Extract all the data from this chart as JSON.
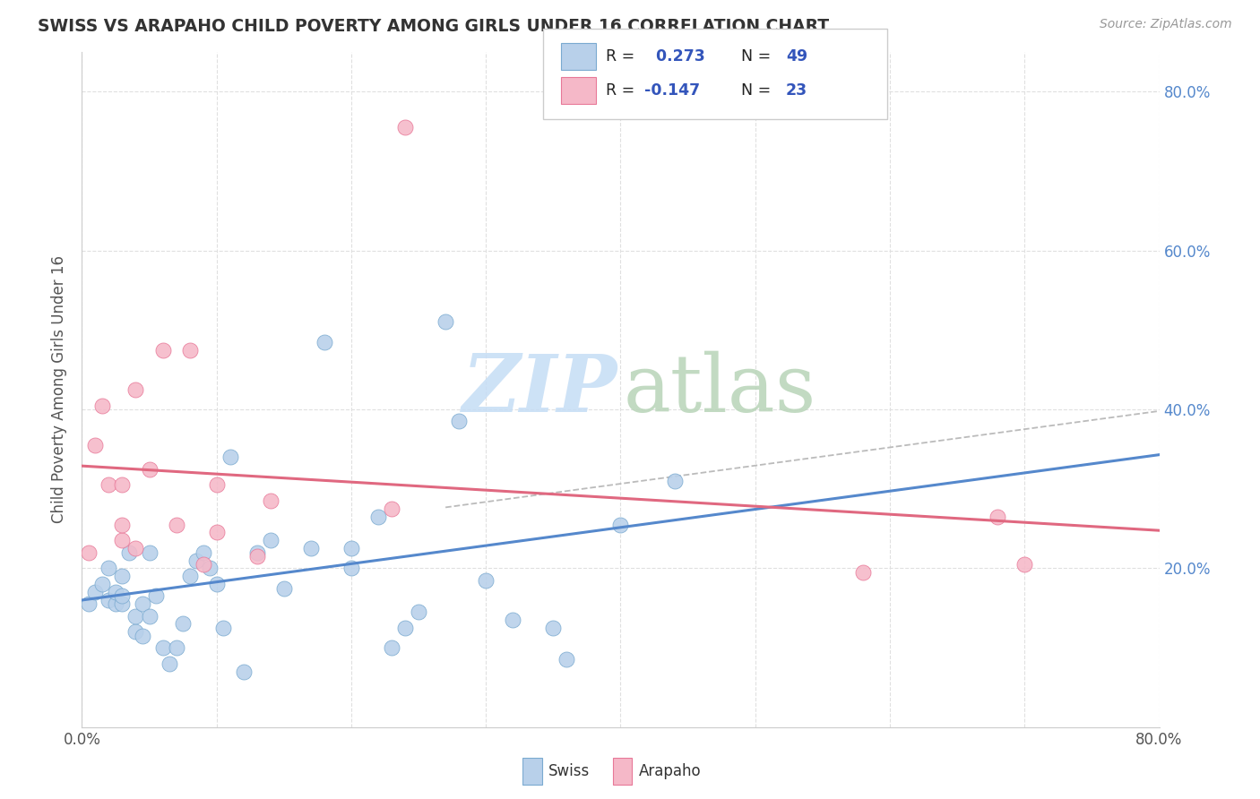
{
  "title": "SWISS VS ARAPAHO CHILD POVERTY AMONG GIRLS UNDER 16 CORRELATION CHART",
  "source": "Source: ZipAtlas.com",
  "ylabel": "Child Poverty Among Girls Under 16",
  "xlim": [
    0.0,
    0.8
  ],
  "ylim": [
    0.0,
    0.85
  ],
  "swiss_R": "0.273",
  "swiss_N": "49",
  "arapaho_R": "-0.147",
  "arapaho_N": "23",
  "swiss_fill": "#b8d0ea",
  "arapaho_fill": "#f5b8c8",
  "swiss_edge": "#7aaad0",
  "arapaho_edge": "#e87898",
  "swiss_line": "#5588cc",
  "arapaho_line": "#e06880",
  "dash_color": "#bbbbbb",
  "grid_color": "#e0e0e0",
  "background": "#ffffff",
  "watermark_zip_color": "#c5ddf5",
  "watermark_atlas_color": "#b8d4b8",
  "legend_text_color": "#3355bb",
  "swiss_x": [
    0.005,
    0.01,
    0.015,
    0.02,
    0.02,
    0.025,
    0.025,
    0.03,
    0.03,
    0.03,
    0.035,
    0.04,
    0.04,
    0.045,
    0.045,
    0.05,
    0.05,
    0.055,
    0.06,
    0.065,
    0.07,
    0.075,
    0.08,
    0.085,
    0.09,
    0.095,
    0.1,
    0.105,
    0.11,
    0.12,
    0.13,
    0.14,
    0.15,
    0.17,
    0.18,
    0.2,
    0.2,
    0.22,
    0.23,
    0.24,
    0.25,
    0.27,
    0.28,
    0.3,
    0.32,
    0.35,
    0.36,
    0.4,
    0.44
  ],
  "swiss_y": [
    0.155,
    0.17,
    0.18,
    0.2,
    0.16,
    0.155,
    0.17,
    0.155,
    0.165,
    0.19,
    0.22,
    0.12,
    0.14,
    0.115,
    0.155,
    0.14,
    0.22,
    0.165,
    0.1,
    0.08,
    0.1,
    0.13,
    0.19,
    0.21,
    0.22,
    0.2,
    0.18,
    0.125,
    0.34,
    0.07,
    0.22,
    0.235,
    0.175,
    0.225,
    0.485,
    0.2,
    0.225,
    0.265,
    0.1,
    0.125,
    0.145,
    0.51,
    0.385,
    0.185,
    0.135,
    0.125,
    0.085,
    0.255,
    0.31
  ],
  "arapaho_x": [
    0.005,
    0.01,
    0.02,
    0.03,
    0.03,
    0.03,
    0.04,
    0.04,
    0.05,
    0.06,
    0.07,
    0.08,
    0.09,
    0.1,
    0.1,
    0.13,
    0.14,
    0.23,
    0.24,
    0.58,
    0.68,
    0.7,
    0.015
  ],
  "arapaho_y": [
    0.22,
    0.355,
    0.305,
    0.235,
    0.255,
    0.305,
    0.225,
    0.425,
    0.325,
    0.475,
    0.255,
    0.475,
    0.205,
    0.245,
    0.305,
    0.215,
    0.285,
    0.275,
    0.755,
    0.195,
    0.265,
    0.205,
    0.405
  ]
}
